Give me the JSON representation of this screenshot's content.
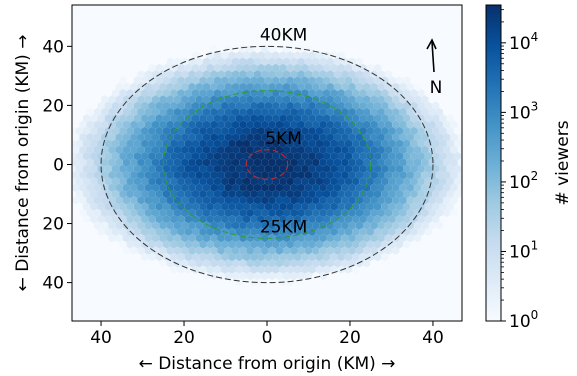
{
  "chart_data": {
    "type": "heatmap",
    "subtype": "hexbin",
    "title": "",
    "xlabel": "← Distance from origin (KM) →",
    "ylabel": "← Distance from origin (KM) →",
    "xlim": [
      -47,
      47
    ],
    "ylim": [
      -53,
      54
    ],
    "x_ticks": [
      -40,
      -20,
      0,
      20,
      40
    ],
    "x_tick_labels": [
      "40",
      "20",
      "0",
      "20",
      "40"
    ],
    "y_ticks": [
      40,
      20,
      0,
      -20,
      -40
    ],
    "y_tick_labels": [
      "40",
      "20",
      "0",
      "20",
      "40"
    ],
    "grid": false,
    "colormap": "Blues",
    "colorbar": {
      "label": "# viewers",
      "scale": "log",
      "range": [
        1,
        35000
      ],
      "ticks": [
        1,
        10,
        100,
        1000,
        10000
      ],
      "tick_labels": [
        "10",
        "10",
        "10",
        "10",
        "10"
      ],
      "tick_exponents": [
        "0",
        "1",
        "2",
        "3",
        "4"
      ]
    },
    "distribution": {
      "center": [
        0,
        0
      ],
      "peak_count": 35000,
      "scale_x_km": 17,
      "scale_y_km": 14
    },
    "circles": [
      {
        "label": "5KM",
        "radius_x_km": 5,
        "radius_y_km": 5,
        "color": "#d62728",
        "label_at": [
          4,
          7
        ]
      },
      {
        "label": "25KM",
        "radius_x_km": 25,
        "radius_y_km": 25,
        "color": "#2ca02c",
        "label_at": [
          4,
          -23
        ]
      },
      {
        "label": "40KM",
        "radius_x_km": 40,
        "radius_y_km": 40,
        "color": "#333333",
        "label_at": [
          4,
          42
        ]
      }
    ],
    "compass": {
      "label": "N",
      "colors": {
        "arrow": "#000000"
      }
    },
    "colors": {
      "max": "#08306b",
      "min": "#f7fbff"
    }
  }
}
